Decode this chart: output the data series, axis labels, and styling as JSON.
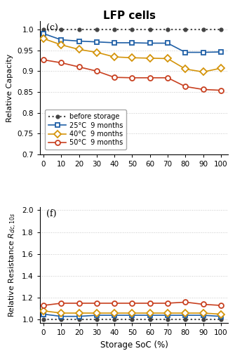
{
  "title": "LFP cells",
  "soc_x": [
    0,
    10,
    20,
    30,
    40,
    50,
    60,
    70,
    80,
    90,
    100
  ],
  "cap_before": [
    1.0,
    1.0,
    1.0,
    1.0,
    1.0,
    1.0,
    1.0,
    1.0,
    1.0,
    1.0,
    1.0
  ],
  "cap_25": [
    0.99,
    0.975,
    0.972,
    0.97,
    0.968,
    0.968,
    0.967,
    0.967,
    0.945,
    0.945,
    0.946
  ],
  "cap_40": [
    0.978,
    0.963,
    0.952,
    0.945,
    0.934,
    0.932,
    0.931,
    0.93,
    0.905,
    0.898,
    0.907
  ],
  "cap_50": [
    0.927,
    0.92,
    0.91,
    0.9,
    0.885,
    0.884,
    0.884,
    0.884,
    0.863,
    0.856,
    0.854
  ],
  "res_before": [
    1.0,
    1.0,
    1.0,
    1.0,
    1.0,
    1.0,
    1.0,
    1.0,
    1.0,
    1.0,
    1.0
  ],
  "res_25": [
    1.05,
    1.03,
    1.03,
    1.04,
    1.04,
    1.04,
    1.04,
    1.04,
    1.04,
    1.04,
    1.03
  ],
  "res_40": [
    1.08,
    1.06,
    1.06,
    1.06,
    1.06,
    1.06,
    1.06,
    1.06,
    1.06,
    1.06,
    1.05
  ],
  "res_50": [
    1.13,
    1.15,
    1.15,
    1.15,
    1.15,
    1.15,
    1.15,
    1.15,
    1.16,
    1.14,
    1.13
  ],
  "color_before": "#444444",
  "color_25": "#1f5fa6",
  "color_40": "#d4940a",
  "color_50": "#c84020",
  "cap_ylabel": "Relative Capacity",
  "res_ylabel": "Relative Resistance $R_{dc,10s}$",
  "xlabel": "Storage SoC (%)",
  "panel_c": "(c)",
  "panel_f": "(f)",
  "cap_ylim": [
    0.7,
    1.02
  ],
  "cap_yticks": [
    0.7,
    0.75,
    0.8,
    0.85,
    0.9,
    0.95,
    1.0
  ],
  "res_ylim": [
    0.97,
    2.03
  ],
  "res_yticks": [
    1.0,
    1.2,
    1.4,
    1.6,
    1.8,
    2.0
  ],
  "xlim": [
    -2,
    104
  ],
  "xticks": [
    0,
    10,
    20,
    30,
    40,
    50,
    60,
    70,
    80,
    90,
    100
  ],
  "legend_labels": [
    "before storage",
    "25°C  9 months",
    "40°C  9 months",
    "50°C  9 months"
  ]
}
